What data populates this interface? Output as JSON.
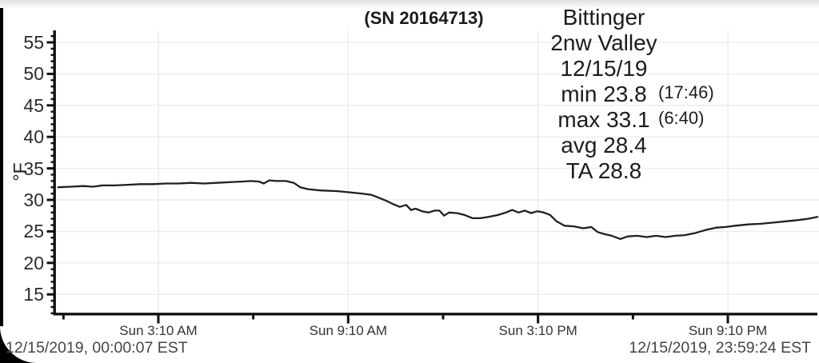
{
  "header": {
    "title": "(SN 20164713)"
  },
  "info_panel": {
    "station": "Bittinger",
    "location": "2nw Valley",
    "date": "12/15/19",
    "min_label": "min 23.8",
    "min_time": "(17:46)",
    "max_label": "max 33.1",
    "max_time": "(6:40)",
    "avg_label": "avg 28.4",
    "ta_label": "TA 28.8"
  },
  "footer": {
    "start_timestamp": "12/15/2019, 00:00:07 EST",
    "end_timestamp": "12/15/2019, 23:59:24 EST"
  },
  "chart_data": {
    "type": "line",
    "title": "(SN 20164713)",
    "xlabel": "",
    "ylabel": "°F",
    "x_unit": "hours since 00:00 EST, 12/15/2019",
    "xlim_hours": [
      0,
      24
    ],
    "ylim": [
      12,
      57
    ],
    "grid": true,
    "grid_color": "#ececec",
    "line_color": "#202020",
    "axis_color": "#111111",
    "y_ticks": [
      15,
      20,
      25,
      30,
      35,
      40,
      45,
      50,
      55
    ],
    "y_minor_step": 1,
    "x_ticks": [
      {
        "hour": 3.1667,
        "label": "Sun 3:10 AM"
      },
      {
        "hour": 9.1667,
        "label": "Sun 9:10 AM"
      },
      {
        "hour": 15.1667,
        "label": "Sun 3:10 PM"
      },
      {
        "hour": 21.1667,
        "label": "Sun 9:10 PM"
      }
    ],
    "x_minor_hours": [
      0.1667,
      6.1667,
      12.1667,
      18.1667
    ],
    "stats": {
      "min": 23.8,
      "min_time": "17:46",
      "max": 33.1,
      "max_time": "6:40",
      "avg": 28.4,
      "ta": 28.8
    },
    "series": [
      {
        "name": "temperature_F",
        "points": [
          [
            0,
            32.0
          ],
          [
            0.4,
            32.1
          ],
          [
            0.8,
            32.2
          ],
          [
            1.1,
            32.1
          ],
          [
            1.4,
            32.3
          ],
          [
            1.8,
            32.3
          ],
          [
            2.2,
            32.4
          ],
          [
            2.6,
            32.5
          ],
          [
            3.0,
            32.5
          ],
          [
            3.4,
            32.6
          ],
          [
            3.8,
            32.6
          ],
          [
            4.2,
            32.7
          ],
          [
            4.6,
            32.6
          ],
          [
            5.0,
            32.7
          ],
          [
            5.4,
            32.8
          ],
          [
            5.8,
            32.9
          ],
          [
            6.1,
            33.0
          ],
          [
            6.35,
            32.9
          ],
          [
            6.5,
            32.6
          ],
          [
            6.67,
            33.1
          ],
          [
            6.9,
            33.0
          ],
          [
            7.2,
            33.0
          ],
          [
            7.45,
            32.7
          ],
          [
            7.65,
            32.0
          ],
          [
            7.9,
            31.7
          ],
          [
            8.3,
            31.5
          ],
          [
            8.8,
            31.4
          ],
          [
            9.2,
            31.2
          ],
          [
            9.6,
            31.0
          ],
          [
            9.9,
            30.8
          ],
          [
            10.1,
            30.4
          ],
          [
            10.4,
            29.8
          ],
          [
            10.6,
            29.3
          ],
          [
            10.8,
            28.9
          ],
          [
            11.0,
            29.2
          ],
          [
            11.15,
            28.4
          ],
          [
            11.3,
            28.6
          ],
          [
            11.5,
            28.2
          ],
          [
            11.7,
            28.0
          ],
          [
            11.9,
            28.3
          ],
          [
            12.05,
            28.3
          ],
          [
            12.2,
            27.5
          ],
          [
            12.35,
            28.0
          ],
          [
            12.6,
            27.9
          ],
          [
            12.85,
            27.6
          ],
          [
            13.1,
            27.1
          ],
          [
            13.35,
            27.1
          ],
          [
            13.6,
            27.3
          ],
          [
            13.9,
            27.6
          ],
          [
            14.15,
            28.0
          ],
          [
            14.35,
            28.4
          ],
          [
            14.55,
            28.0
          ],
          [
            14.75,
            28.3
          ],
          [
            14.95,
            27.9
          ],
          [
            15.15,
            28.2
          ],
          [
            15.35,
            28.0
          ],
          [
            15.55,
            27.6
          ],
          [
            15.75,
            26.6
          ],
          [
            16.0,
            25.9
          ],
          [
            16.3,
            25.8
          ],
          [
            16.6,
            25.5
          ],
          [
            16.85,
            25.7
          ],
          [
            17.05,
            24.9
          ],
          [
            17.25,
            24.6
          ],
          [
            17.5,
            24.3
          ],
          [
            17.77,
            23.8
          ],
          [
            18.0,
            24.2
          ],
          [
            18.3,
            24.3
          ],
          [
            18.6,
            24.1
          ],
          [
            18.9,
            24.3
          ],
          [
            19.2,
            24.1
          ],
          [
            19.5,
            24.3
          ],
          [
            19.8,
            24.4
          ],
          [
            20.1,
            24.7
          ],
          [
            20.45,
            25.2
          ],
          [
            20.8,
            25.6
          ],
          [
            21.1,
            25.7
          ],
          [
            21.4,
            25.9
          ],
          [
            21.8,
            26.1
          ],
          [
            22.2,
            26.2
          ],
          [
            22.6,
            26.4
          ],
          [
            23.0,
            26.6
          ],
          [
            23.4,
            26.8
          ],
          [
            23.7,
            27.0
          ],
          [
            24.0,
            27.3
          ]
        ]
      }
    ]
  }
}
